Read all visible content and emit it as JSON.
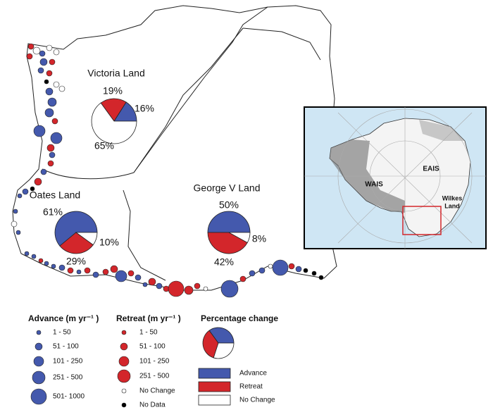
{
  "map": {
    "regions": [
      {
        "name": "Victoria Land",
        "values": [
          16,
          19,
          65
        ],
        "value_labels": [
          "16%",
          "19%",
          "65%"
        ]
      },
      {
        "name": "Oates Land",
        "values": [
          61,
          29,
          10
        ],
        "value_labels": [
          "61%",
          "29%",
          "10%"
        ]
      },
      {
        "name": "George V Land",
        "values": [
          50,
          42,
          8
        ],
        "value_labels": [
          "50%",
          "42%",
          "8%"
        ]
      }
    ],
    "inset": {
      "labels": [
        "WAIS",
        "EAIS"
      ],
      "wilkes_land": [
        "Wilkes",
        "Land"
      ]
    }
  },
  "legend": {
    "advance": {
      "title": "Advance (m yr⁻¹ )",
      "items": [
        "1 - 50",
        "51 - 100",
        "101 - 250",
        "251 - 500",
        "501- 1000"
      ]
    },
    "retreat": {
      "title": "Retreat (m yr⁻¹ )",
      "items": [
        "1 - 50",
        "51 - 100",
        "101 - 250",
        "251 - 500",
        "No Change",
        "No Data"
      ]
    },
    "percentage": {
      "title": "Percentage change",
      "items": [
        "Advance",
        "Retreat",
        "No Change"
      ]
    }
  },
  "colors": {
    "advance": "#4459ad",
    "retreat": "#d3262b",
    "no_change": "#ffffff",
    "no_data": "#000000"
  }
}
